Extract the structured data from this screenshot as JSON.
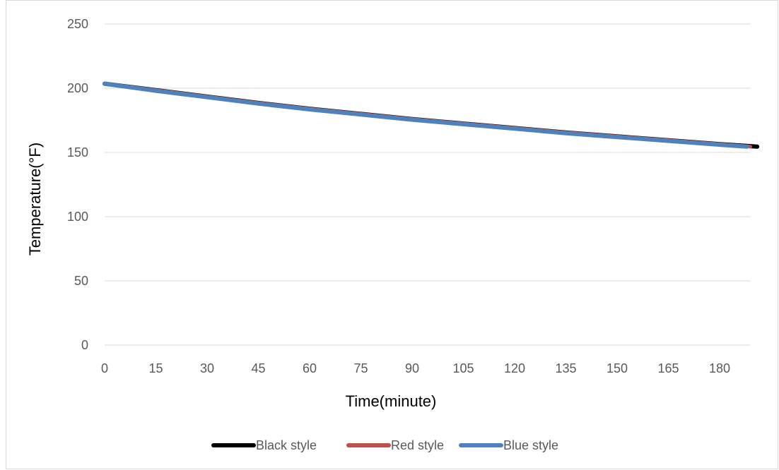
{
  "chart_data": {
    "type": "line",
    "title": "",
    "xlabel": "Time(minute)",
    "ylabel": "Temperature(°F)",
    "x_ticks": [
      "0",
      "15",
      "30",
      "45",
      "60",
      "75",
      "90",
      "105",
      "120",
      "135",
      "150",
      "165",
      "180"
    ],
    "y_ticks": [
      "0",
      "50",
      "100",
      "150",
      "200",
      "250"
    ],
    "xlim": [
      0,
      191
    ],
    "ylim": [
      0,
      250
    ],
    "grid": "horizontal",
    "legend_position": "bottom",
    "series": [
      {
        "name": "Black style",
        "color": "#000000",
        "x": [
          0,
          15,
          30,
          45,
          60,
          75,
          90,
          105,
          120,
          135,
          150,
          165,
          180,
          191
        ],
        "y": [
          203.5,
          198.5,
          193.5,
          188.5,
          184,
          180,
          176,
          172.5,
          169,
          165.5,
          162.5,
          159.5,
          156.5,
          154.5
        ]
      },
      {
        "name": "Red style",
        "color": "#c0504d",
        "x": [
          0,
          15,
          30,
          45,
          60,
          75,
          90,
          105,
          120,
          135,
          150,
          165,
          180,
          189
        ],
        "y": [
          203.5,
          198.5,
          193.5,
          188.5,
          184,
          180,
          176,
          172.5,
          169,
          165.5,
          162.5,
          159.5,
          156.5,
          154.5
        ]
      },
      {
        "name": "Blue style",
        "color": "#4f81bd",
        "x": [
          0,
          15,
          30,
          45,
          60,
          75,
          90,
          105,
          120,
          135,
          150,
          165,
          180,
          188
        ],
        "y": [
          203.5,
          198,
          193,
          188,
          183.5,
          179.5,
          175.5,
          172,
          168.5,
          165,
          162,
          159,
          156,
          154.5
        ]
      }
    ]
  }
}
